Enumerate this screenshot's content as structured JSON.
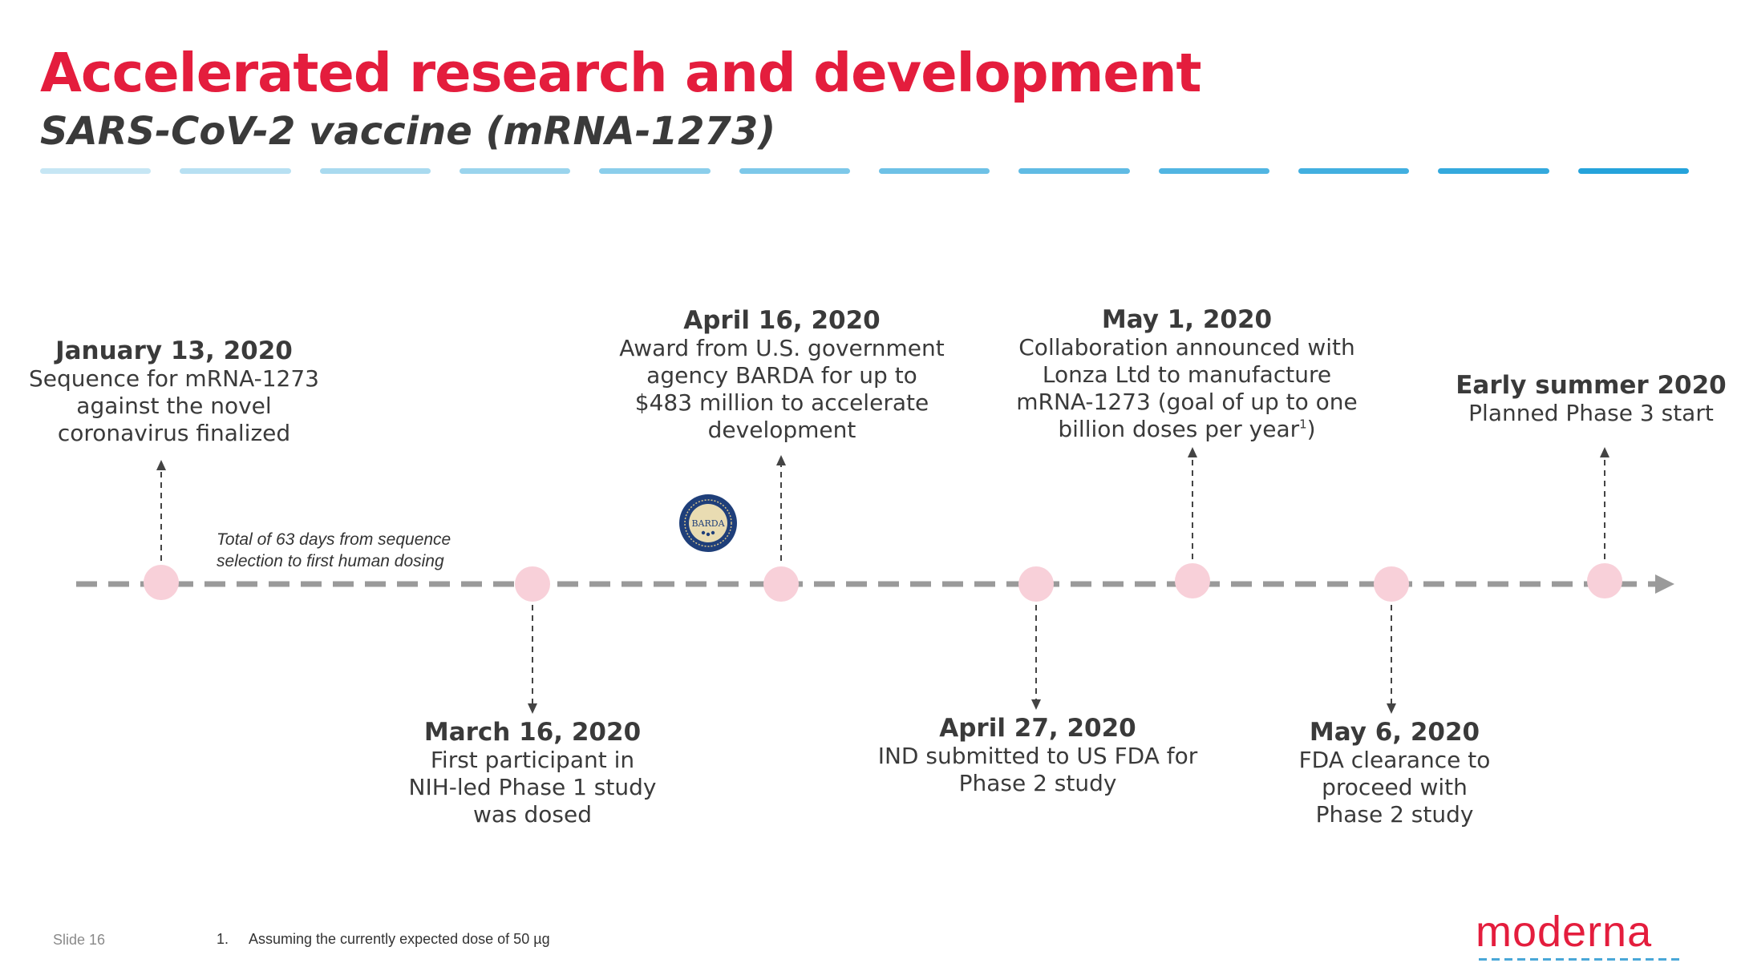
{
  "header": {
    "title": "Accelerated research and development",
    "subtitle": "SARS-CoV-2 vaccine (mRNA-1273)"
  },
  "timeline": {
    "note": "Total of 63 days from sequence\nselection to first human dosing",
    "events": [
      {
        "date": "January 13, 2020",
        "text": "Sequence for mRNA-1273\nagainst the novel\ncoronavirus finalized"
      },
      {
        "date": "March 16, 2020",
        "text": "First participant in\nNIH-led Phase 1 study\nwas dosed"
      },
      {
        "date": "April 16, 2020",
        "text": "Award from U.S. government\nagency BARDA for up to\n$483 million to accelerate\ndevelopment"
      },
      {
        "date": "April 27, 2020",
        "text": "IND submitted to US FDA for\nPhase 2 study"
      },
      {
        "date": "May 1, 2020",
        "text": "Collaboration announced with\nLonza Ltd to manufacture\nmRNA-1273 (goal of up to one\nbillion doses per year",
        "superscript": "1",
        "text_end": ")"
      },
      {
        "date": "May 6, 2020",
        "text": "FDA clearance to\nproceed with\nPhase 2 study"
      },
      {
        "date": "Early summer 2020",
        "text": "Planned Phase 3 start"
      }
    ],
    "badge_label": "BARDA"
  },
  "footer": {
    "slide_label": "Slide 16",
    "footnote_number": "1.",
    "footnote_text": "Assuming the currently expected dose of 50 µg",
    "logo_text": "moderna"
  },
  "colors": {
    "title": "#e41d3d",
    "text": "#3a3a3a",
    "node": "#f8d0d9",
    "timeline": "#9a9a9a",
    "dash_light": "#c6e6f4",
    "dash_dark": "#25a3db"
  }
}
